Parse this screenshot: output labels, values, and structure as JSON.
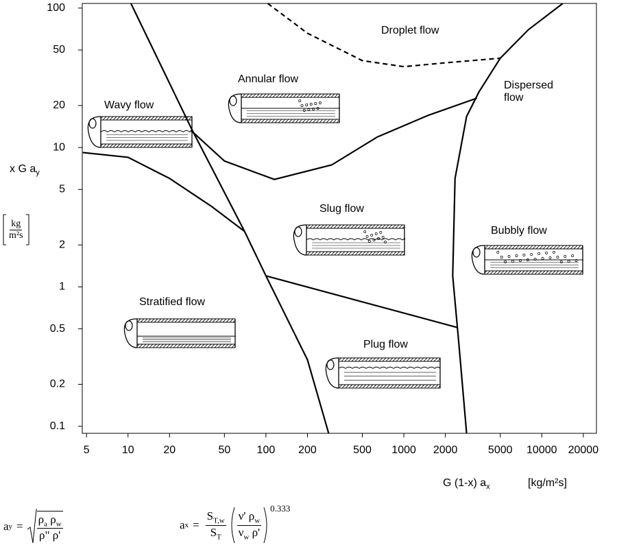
{
  "chart_data": {
    "type": "line",
    "log_x": true,
    "log_y": true,
    "xlim": [
      4.66,
      24900
    ],
    "ylim": [
      0.089,
      108
    ],
    "xticks": [
      5,
      10,
      20,
      50,
      100,
      200,
      500,
      1000,
      2000,
      5000,
      10000,
      20000
    ],
    "yticks": [
      0.1,
      0.2,
      0.5,
      1,
      2,
      5,
      10,
      20,
      50,
      100
    ],
    "y_label": {
      "text": "x G a",
      "sub": "y",
      "unit_num": "kg",
      "unit_den": "m²s"
    },
    "x_label": {
      "text": "G (1-x) a",
      "sub": "x",
      "unit": "[kg/m²s]"
    },
    "series": [
      {
        "color": "#000000",
        "dashed": false,
        "x": [
          10.5,
          29,
          70,
          100,
          200,
          285
        ],
        "values": [
          108,
          13.5,
          2.5,
          1.2,
          0.3,
          0.089
        ]
      },
      {
        "color": "#000000",
        "dashed": false,
        "x": [
          4.7,
          10,
          20,
          40,
          70
        ],
        "values": [
          9.2,
          8.5,
          6,
          3.8,
          2.5
        ]
      },
      {
        "color": "#000000",
        "dashed": false,
        "x": [
          28.5,
          50,
          115,
          300,
          643,
          1500,
          3390
        ],
        "values": [
          13.3,
          8,
          5.9,
          7.5,
          11.9,
          17,
          22.6
        ]
      },
      {
        "color": "#000000",
        "dashed": false,
        "x": [
          14200,
          8000,
          5000,
          3500,
          2850,
          2350,
          2260,
          2500,
          2850
        ],
        "values": [
          108,
          70,
          43.7,
          25,
          16.7,
          6,
          1.2,
          0.4,
          0.089
        ]
      },
      {
        "color": "#000000",
        "dashed": false,
        "x": [
          100,
          2460
        ],
        "values": [
          1.2,
          0.51
        ]
      },
      {
        "color": "#000000",
        "dashed": true,
        "x": [
          103,
          200,
          500,
          1000,
          2000,
          5000
        ],
        "values": [
          108,
          66,
          42,
          38,
          40.5,
          43.7
        ]
      }
    ],
    "annotations": [
      "Droplet flow",
      "Annular flow",
      "Wavy flow",
      "Dispersed flow",
      "Slug flow",
      "Bubbly flow",
      "Stratified flow",
      "Plug flow"
    ],
    "formula_y": {
      "a": "a",
      "sub": "y",
      "eq": "=",
      "n1": "ρ",
      "n1_sub": "a",
      "n2": "ρ",
      "n2_sub": "w",
      "den": "ρ\" ρ'"
    },
    "formula_x": {
      "a": "a",
      "sub": "x",
      "eq": "=",
      "fn": "S",
      "fn_sub": "T,w",
      "fd": "S",
      "fd_sub": "T",
      "pn1": "ν' ρ",
      "pn1_sub": "w",
      "pd1": "ν",
      "pd1_sub": "w",
      "pd2": "ρ'",
      "exp": "0.333"
    }
  }
}
